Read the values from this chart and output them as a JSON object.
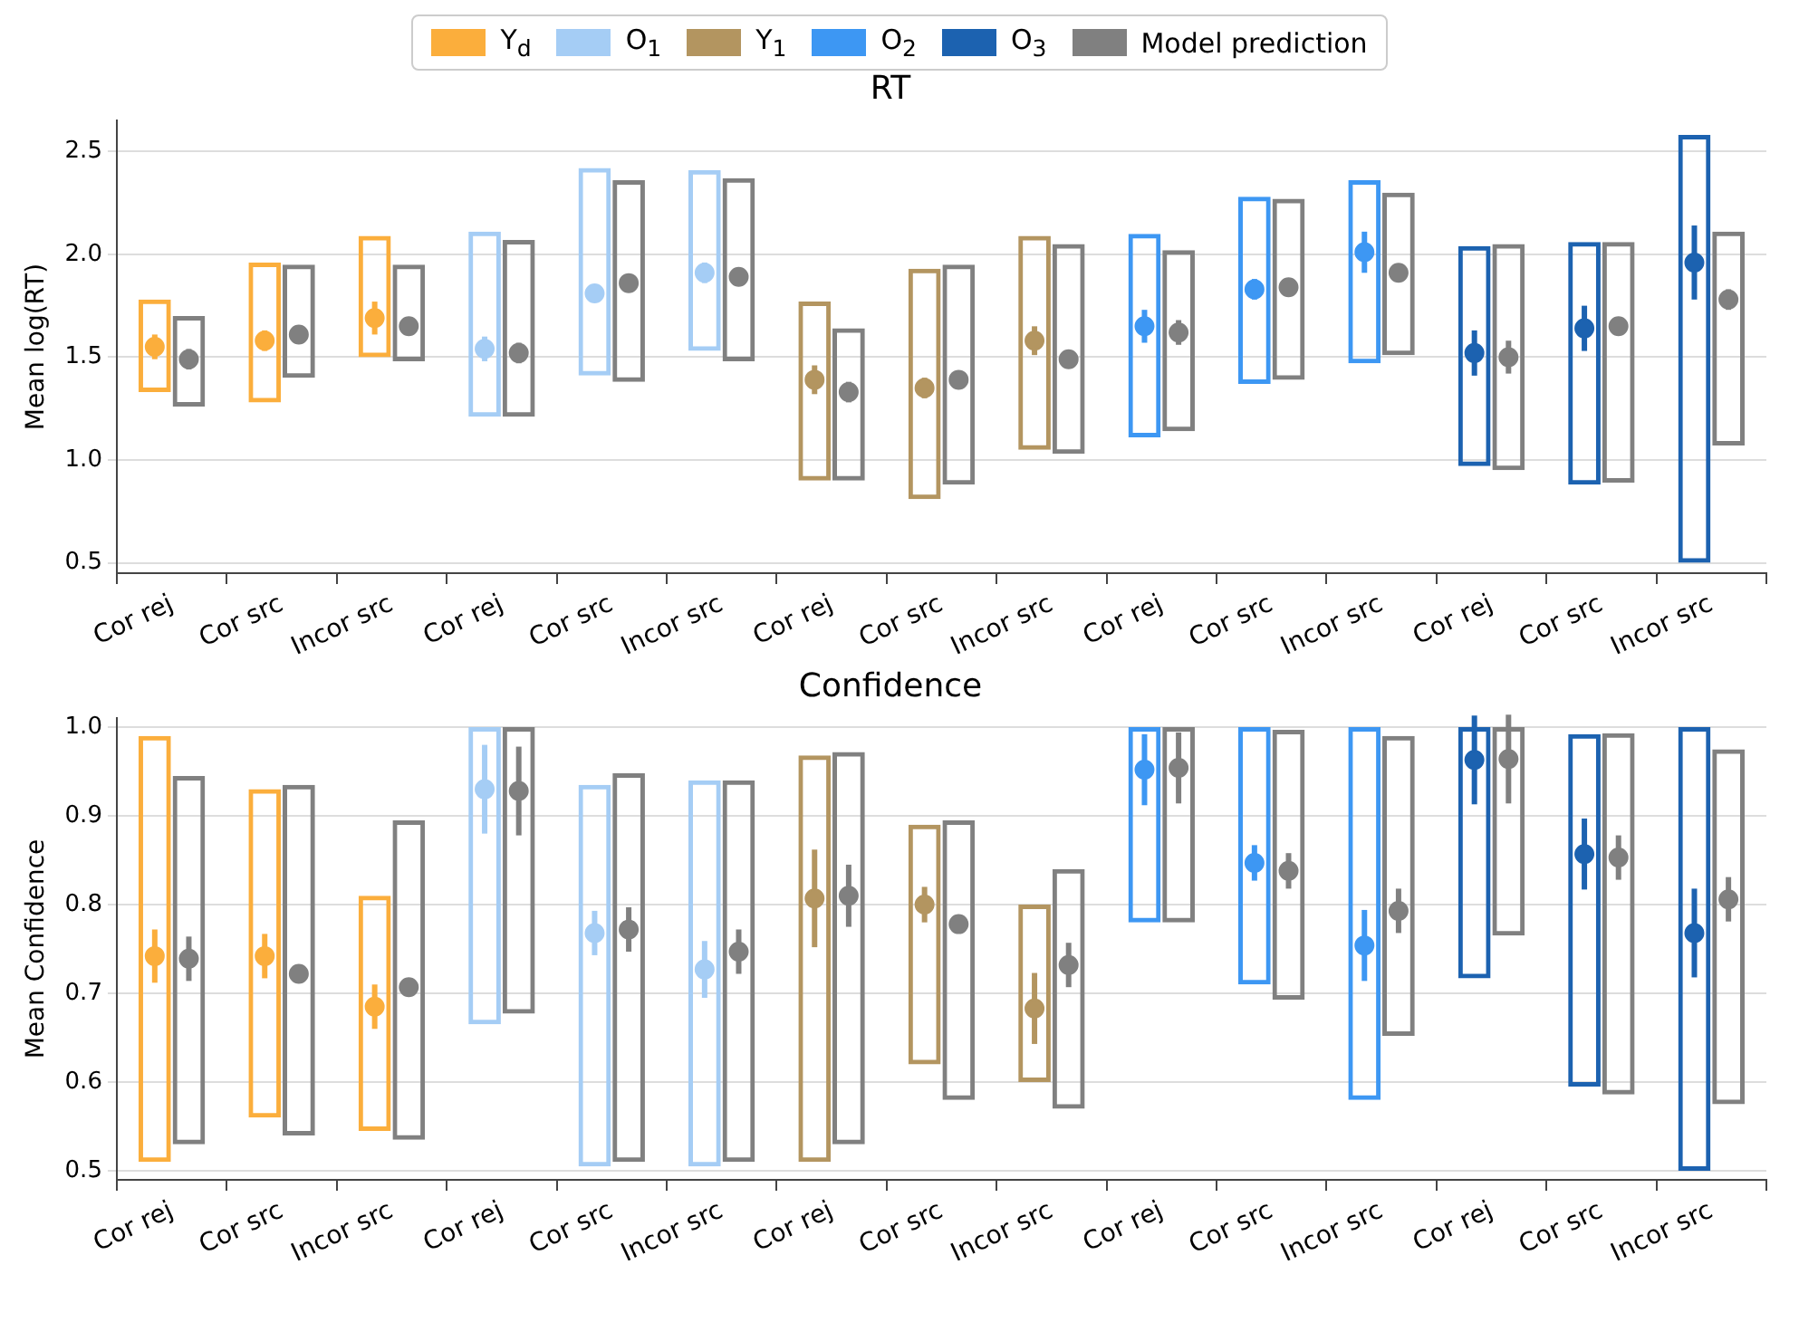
{
  "chart_data": [
    {
      "type": "scatter",
      "title": "RT",
      "ylabel": "Mean log(RT)",
      "legend": "top",
      "grid": "y",
      "categories": [
        "Cor rej",
        "Cor src",
        "Incor src",
        "Cor rej",
        "Cor src",
        "Incor src",
        "Cor rej",
        "Cor src",
        "Incor src",
        "Cor rej",
        "Cor src",
        "Incor src",
        "Cor rej",
        "Cor src",
        "Incor src"
      ],
      "ylim": [
        0.45,
        2.65
      ],
      "yticks": [
        {
          "value": 0.5,
          "label": "0.5"
        },
        {
          "value": 1,
          "label": "1.0"
        },
        {
          "value": 1.5,
          "label": "1.5"
        },
        {
          "value": 2,
          "label": "2.0"
        },
        {
          "value": 2.5,
          "label": "2.5"
        }
      ],
      "series": [
        {
          "type": "bar",
          "colors": [
            "#fbae3c",
            "#fbae3c",
            "#fbae3c",
            "#a5cdf5",
            "#a5cdf5",
            "#a5cdf5",
            "#b39560",
            "#b39560",
            "#b39560",
            "#3d97f3",
            "#3d97f3",
            "#3d97f3",
            "#1c62b0",
            "#1c62b0",
            "#1c62b0"
          ],
          "base": [
            1.33,
            1.28,
            1.5,
            1.21,
            1.41,
            1.53,
            0.9,
            0.81,
            1.05,
            1.11,
            1.37,
            1.47,
            0.97,
            0.88,
            0.5
          ],
          "values": [
            0.45,
            0.68,
            0.59,
            0.9,
            1.01,
            0.88,
            0.87,
            1.12,
            1.04,
            0.99,
            0.91,
            0.89,
            1.07,
            1.18,
            2.08
          ]
        },
        {
          "type": "bar",
          "color": "#808080",
          "base": [
            1.26,
            1.4,
            1.48,
            1.21,
            1.38,
            1.48,
            0.9,
            0.88,
            1.03,
            1.14,
            1.39,
            1.51,
            0.95,
            0.89,
            1.07
          ],
          "values": [
            0.44,
            0.55,
            0.47,
            0.86,
            0.98,
            0.89,
            0.74,
            1.07,
            1.02,
            0.88,
            0.88,
            0.79,
            1.1,
            1.17,
            1.04
          ]
        },
        {
          "type": "scatter",
          "name": "Y$_{d}$",
          "color": "#fbae3c",
          "values": [
            1.55,
            1.58,
            1.69,
            null,
            null,
            null,
            null,
            null,
            null,
            null,
            null,
            null,
            null,
            null,
            null
          ],
          "errors": [
            0.06,
            0.05,
            0.08,
            null,
            null,
            null,
            null,
            null,
            null,
            null,
            null,
            null,
            null,
            null,
            null
          ]
        },
        {
          "type": "scatter",
          "name": "O$_{1}$",
          "color": "#a5cdf5",
          "values": [
            null,
            null,
            null,
            1.54,
            1.81,
            1.91,
            null,
            null,
            null,
            null,
            null,
            null,
            null,
            null,
            null
          ],
          "errors": [
            null,
            null,
            null,
            0.06,
            0.03,
            0.05,
            null,
            null,
            null,
            null,
            null,
            null,
            null,
            null,
            null
          ]
        },
        {
          "type": "scatter",
          "name": "Y$_{1}$",
          "color": "#b39560",
          "values": [
            null,
            null,
            null,
            null,
            null,
            null,
            1.39,
            1.35,
            1.58,
            null,
            null,
            null,
            null,
            null,
            null
          ],
          "errors": [
            null,
            null,
            null,
            null,
            null,
            null,
            0.07,
            0.05,
            0.07,
            null,
            null,
            null,
            null,
            null,
            null
          ]
        },
        {
          "type": "scatter",
          "name": "O$_{2}$",
          "color": "#3d97f3",
          "values": [
            null,
            null,
            null,
            null,
            null,
            null,
            null,
            null,
            null,
            1.65,
            1.83,
            2.01,
            null,
            null,
            null
          ],
          "errors": [
            null,
            null,
            null,
            null,
            null,
            null,
            null,
            null,
            null,
            0.08,
            0.05,
            0.1,
            null,
            null,
            null
          ]
        },
        {
          "type": "scatter",
          "name": "O$_{3}$",
          "color": "#1c62b0",
          "values": [
            null,
            null,
            null,
            null,
            null,
            null,
            null,
            null,
            null,
            null,
            null,
            null,
            1.52,
            1.64,
            1.96
          ],
          "errors": [
            null,
            null,
            null,
            null,
            null,
            null,
            null,
            null,
            null,
            null,
            null,
            null,
            0.11,
            0.11,
            0.18
          ]
        },
        {
          "type": "scatter",
          "name": "Model prediction",
          "color": "#808080",
          "values": [
            1.49,
            1.61,
            1.65,
            1.52,
            1.86,
            1.89,
            1.33,
            1.39,
            1.49,
            1.62,
            1.84,
            1.91,
            1.5,
            1.65,
            1.78
          ],
          "errors": [
            0.05,
            0.03,
            0.03,
            0.05,
            0.03,
            0.03,
            0.05,
            0.03,
            0.03,
            0.06,
            0.04,
            0.04,
            0.08,
            0.04,
            0.05
          ]
        }
      ]
    },
    {
      "type": "scatter",
      "title": "Confidence",
      "ylabel": "Mean Confidence",
      "grid": "y",
      "categories": [
        "Cor rej",
        "Cor src",
        "Incor src",
        "Cor rej",
        "Cor src",
        "Incor src",
        "Cor rej",
        "Cor src",
        "Incor src",
        "Cor rej",
        "Cor src",
        "Incor src",
        "Cor rej",
        "Cor src",
        "Incor src"
      ],
      "ylim": [
        0.49,
        1.01
      ],
      "yticks": [
        {
          "value": 0.5,
          "label": "0.5"
        },
        {
          "value": 0.6,
          "label": "0.6"
        },
        {
          "value": 0.7,
          "label": "0.7"
        },
        {
          "value": 0.8,
          "label": "0.8"
        },
        {
          "value": 0.9,
          "label": "0.9"
        },
        {
          "value": 1,
          "label": "1.0"
        }
      ],
      "series": [
        {
          "type": "bar",
          "colors": [
            "#fbae3c",
            "#fbae3c",
            "#fbae3c",
            "#a5cdf5",
            "#a5cdf5",
            "#a5cdf5",
            "#b39560",
            "#b39560",
            "#b39560",
            "#3d97f3",
            "#3d97f3",
            "#3d97f3",
            "#1c62b0",
            "#1c62b0",
            "#1c62b0"
          ],
          "base": [
            0.51,
            0.56,
            0.545,
            0.665,
            0.505,
            0.505,
            0.51,
            0.62,
            0.6,
            0.78,
            0.71,
            0.58,
            0.717,
            0.595,
            0.5
          ],
          "values": [
            0.48,
            0.37,
            0.265,
            0.335,
            0.43,
            0.435,
            0.458,
            0.27,
            0.2,
            0.22,
            0.29,
            0.42,
            0.283,
            0.397,
            0.5
          ]
        },
        {
          "type": "bar",
          "color": "#808080",
          "base": [
            0.53,
            0.54,
            0.535,
            0.677,
            0.51,
            0.51,
            0.53,
            0.58,
            0.57,
            0.78,
            0.693,
            0.652,
            0.765,
            0.586,
            0.575
          ],
          "values": [
            0.415,
            0.395,
            0.36,
            0.323,
            0.438,
            0.43,
            0.442,
            0.315,
            0.27,
            0.22,
            0.304,
            0.338,
            0.235,
            0.407,
            0.4
          ]
        },
        {
          "type": "scatter",
          "color": "#fbae3c",
          "values": [
            0.742,
            0.742,
            0.685,
            null,
            null,
            null,
            null,
            null,
            null,
            null,
            null,
            null,
            null,
            null,
            null
          ],
          "errors": [
            0.03,
            0.025,
            0.025,
            null,
            null,
            null,
            null,
            null,
            null,
            null,
            null,
            null,
            null,
            null,
            null
          ]
        },
        {
          "type": "scatter",
          "color": "#a5cdf5",
          "values": [
            null,
            null,
            null,
            0.93,
            0.768,
            0.727,
            null,
            null,
            null,
            null,
            null,
            null,
            null,
            null,
            null
          ],
          "errors": [
            null,
            null,
            null,
            0.05,
            0.025,
            0.032,
            null,
            null,
            null,
            null,
            null,
            null,
            null,
            null,
            null
          ]
        },
        {
          "type": "scatter",
          "color": "#b39560",
          "values": [
            null,
            null,
            null,
            null,
            null,
            null,
            0.807,
            0.8,
            0.683,
            null,
            null,
            null,
            null,
            null,
            null
          ],
          "errors": [
            null,
            null,
            null,
            null,
            null,
            null,
            0.055,
            0.02,
            0.04,
            null,
            null,
            null,
            null,
            null,
            null
          ]
        },
        {
          "type": "scatter",
          "color": "#3d97f3",
          "values": [
            null,
            null,
            null,
            null,
            null,
            null,
            null,
            null,
            null,
            0.952,
            0.847,
            0.754,
            null,
            null,
            null
          ],
          "errors": [
            null,
            null,
            null,
            null,
            null,
            null,
            null,
            null,
            null,
            0.04,
            0.02,
            0.04,
            null,
            null,
            null
          ]
        },
        {
          "type": "scatter",
          "color": "#1c62b0",
          "values": [
            null,
            null,
            null,
            null,
            null,
            null,
            null,
            null,
            null,
            null,
            null,
            null,
            0.963,
            0.857,
            0.768
          ],
          "errors": [
            null,
            null,
            null,
            null,
            null,
            null,
            null,
            null,
            null,
            null,
            null,
            null,
            0.05,
            0.04,
            0.05
          ]
        },
        {
          "type": "scatter",
          "color": "#808080",
          "values": [
            0.739,
            0.722,
            0.707,
            0.928,
            0.772,
            0.747,
            0.81,
            0.778,
            0.732,
            0.954,
            0.838,
            0.793,
            0.964,
            0.853,
            0.806
          ],
          "errors": [
            0.025,
            0.01,
            0.01,
            0.05,
            0.025,
            0.025,
            0.035,
            0.01,
            0.025,
            0.04,
            0.02,
            0.025,
            0.05,
            0.025,
            0.025
          ]
        }
      ]
    }
  ]
}
